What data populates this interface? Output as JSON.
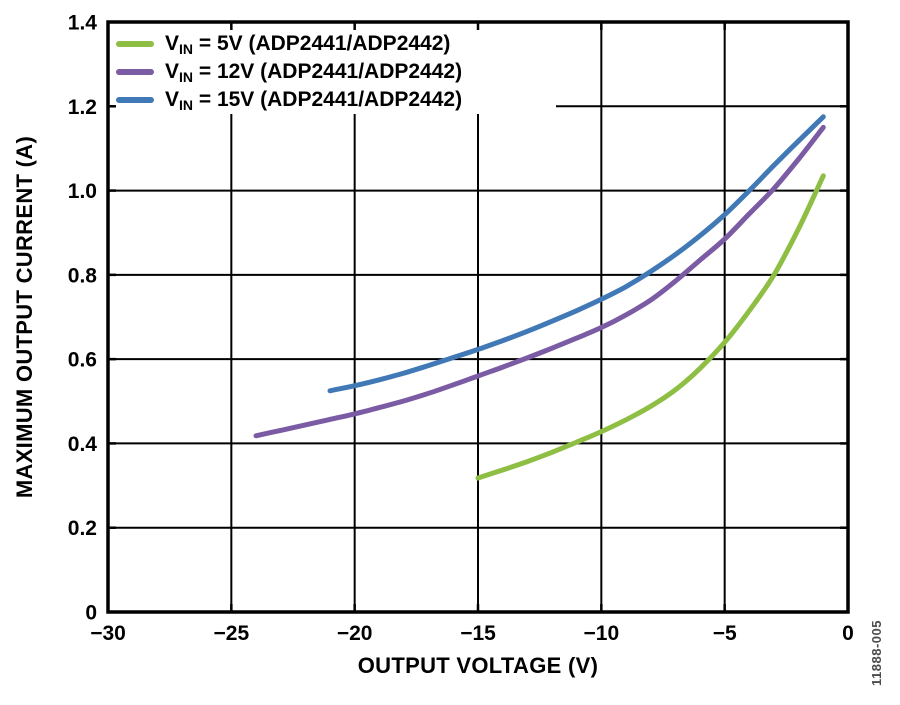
{
  "figure_number": "11888-005",
  "axes": {
    "xlabel": "OUTPUT VOLTAGE (V)",
    "ylabel": "MAXIMUM OUTPUT CURRENT (A)"
  },
  "legend": {
    "items": [
      {
        "prefix": "V",
        "subscript": "IN",
        "suffix": " = 5V (ADP2441/ADP2442)"
      },
      {
        "prefix": "V",
        "subscript": "IN",
        "suffix": " = 12V (ADP2441/ADP2442)"
      },
      {
        "prefix": "V",
        "subscript": "IN",
        "suffix": " = 15V (ADP2441/ADP2442)"
      }
    ]
  },
  "colors": {
    "background": "#FFFFFF",
    "grid": "#000000",
    "border": "#000000",
    "text": "#000000",
    "figure_label": "#4C4C4C",
    "series_green": "#8FBE44",
    "series_purple": "#7B5CA4",
    "series_blue": "#4179B7"
  },
  "chart_data": {
    "type": "line",
    "title": "",
    "xlabel": "OUTPUT VOLTAGE (V)",
    "ylabel": "MAXIMUM OUTPUT CURRENT (A)",
    "xlim": [
      -30,
      0
    ],
    "ylim": [
      0,
      1.4
    ],
    "x_ticks": [
      -30,
      -25,
      -20,
      -15,
      -10,
      -5,
      0
    ],
    "x_tick_labels": [
      "−30",
      "−25",
      "−20",
      "−15",
      "−10",
      "−5",
      "0"
    ],
    "y_ticks": [
      0,
      0.2,
      0.4,
      0.6,
      0.8,
      1.0,
      1.2,
      1.4
    ],
    "y_tick_labels": [
      "0",
      "0.2",
      "0.4",
      "0.6",
      "0.8",
      "1.0",
      "1.2",
      "1.4"
    ],
    "grid": true,
    "legend_position": "top-left-inside",
    "series": [
      {
        "name": "VIN = 5V (ADP2441/ADP2442)",
        "color": "#8FBE44",
        "points": [
          [
            -15,
            0.318
          ],
          [
            -14,
            0.337
          ],
          [
            -13,
            0.357
          ],
          [
            -12,
            0.379
          ],
          [
            -11,
            0.403
          ],
          [
            -10,
            0.428
          ],
          [
            -9,
            0.456
          ],
          [
            -8,
            0.488
          ],
          [
            -7,
            0.527
          ],
          [
            -6,
            0.578
          ],
          [
            -5,
            0.64
          ],
          [
            -4,
            0.715
          ],
          [
            -3,
            0.8
          ],
          [
            -2,
            0.91
          ],
          [
            -1,
            1.035
          ]
        ]
      },
      {
        "name": "VIN = 12V (ADP2441/ADP2442)",
        "color": "#7B5CA4",
        "points": [
          [
            -24,
            0.418
          ],
          [
            -23,
            0.431
          ],
          [
            -22,
            0.444
          ],
          [
            -21,
            0.457
          ],
          [
            -20,
            0.47
          ],
          [
            -19,
            0.485
          ],
          [
            -18,
            0.501
          ],
          [
            -17,
            0.519
          ],
          [
            -16,
            0.539
          ],
          [
            -15,
            0.56
          ],
          [
            -14,
            0.581
          ],
          [
            -13,
            0.603
          ],
          [
            -12,
            0.626
          ],
          [
            -11,
            0.65
          ],
          [
            -10,
            0.675
          ],
          [
            -9,
            0.705
          ],
          [
            -8,
            0.74
          ],
          [
            -7,
            0.785
          ],
          [
            -6,
            0.835
          ],
          [
            -5,
            0.885
          ],
          [
            -4,
            0.945
          ],
          [
            -3,
            1.005
          ],
          [
            -2,
            1.075
          ],
          [
            -1,
            1.15
          ]
        ]
      },
      {
        "name": "VIN = 15V (ADP2441/ADP2442)",
        "color": "#4179B7",
        "points": [
          [
            -21,
            0.525
          ],
          [
            -20,
            0.537
          ],
          [
            -19,
            0.551
          ],
          [
            -18,
            0.567
          ],
          [
            -17,
            0.585
          ],
          [
            -16,
            0.604
          ],
          [
            -15,
            0.623
          ],
          [
            -14,
            0.644
          ],
          [
            -13,
            0.666
          ],
          [
            -12,
            0.69
          ],
          [
            -11,
            0.715
          ],
          [
            -10,
            0.742
          ],
          [
            -9,
            0.772
          ],
          [
            -8,
            0.808
          ],
          [
            -7,
            0.848
          ],
          [
            -6,
            0.893
          ],
          [
            -5,
            0.943
          ],
          [
            -4,
            1.0
          ],
          [
            -3,
            1.06
          ],
          [
            -2,
            1.118
          ],
          [
            -1,
            1.175
          ]
        ]
      }
    ]
  }
}
